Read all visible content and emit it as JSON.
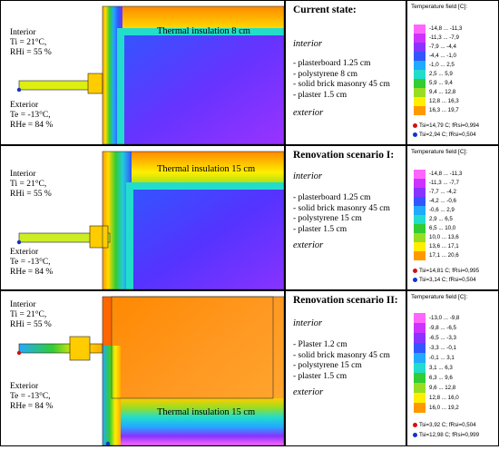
{
  "panels": [
    {
      "interior_lines": [
        "Interior",
        "Ti = 21°C,",
        "RHi = 55 %"
      ],
      "exterior_lines": [
        "Exterior",
        "Te = -13°C,",
        "RHe = 84 %"
      ],
      "insulation_label": "Thermal insulation 8 cm",
      "title": "Current state:",
      "interior_word": "interior",
      "layers": [
        "plasterboard 1.25 cm",
        "polystyrene 8 cm",
        "solid brick masonry 45 cm",
        "plaster 1.5 cm"
      ],
      "exterior_word": "exterior",
      "legend_title": "Temperature field [C]:",
      "legend_ranges": [
        "-14,8 ... -11,3",
        "-11,3 ... -7,9",
        "-7,9 ... -4,4",
        "-4,4 ... -1,0",
        "-1,0 ... 2,5",
        "2,5 ... 5,9",
        "5,9 ... 9,4",
        "9,4 ... 12,8",
        "12,8 ... 16,3",
        "16,3 ... 19,7"
      ],
      "tsi": [
        "Tsi=14,79 C; fRsi=0,994",
        "Tsi=2,94 C; fRsi=0,504"
      ]
    },
    {
      "interior_lines": [
        "Interior",
        "Ti = 21°C,",
        "RHi = 55 %"
      ],
      "exterior_lines": [
        "Exterior",
        "Te = -13°C,",
        "RHe = 84 %"
      ],
      "insulation_label": "Thermal insulation 15 cm",
      "title": "Renovation scenario I:",
      "interior_word": "interior",
      "layers": [
        "plasterboard 1.25 cm",
        "solid brick masonry 45 cm",
        "polystyrene 15 cm",
        "plaster 1.5 cm"
      ],
      "exterior_word": "exterior",
      "legend_title": "Temperature field [C]:",
      "legend_ranges": [
        "-14,8 ... -11,3",
        "-11,3 ... -7,7",
        "-7,7 ... -4,2",
        "-4,2 ... -0,6",
        "-0,6 ... 2,9",
        "2,9 ... 6,5",
        "6,5 ... 10,0",
        "10,0 ... 13,6",
        "13,6 ... 17,1",
        "17,1 ... 20,6"
      ],
      "tsi": [
        "Tsi=14,81 C; fRsi=0,995",
        "Tsi=3,14 C; fRsi=0,504"
      ]
    },
    {
      "interior_lines": [
        "Interior",
        "Ti = 21°C,",
        "RHi = 55 %"
      ],
      "exterior_lines": [
        "Exterior",
        "Te = -13°C,",
        "RHe = 84 %"
      ],
      "insulation_label": "Thermal insulation 15 cm",
      "title": "Renovation scenario II:",
      "interior_word": "interior",
      "layers": [
        "Plaster  1.2 cm",
        "solid brick masonry 45 cm",
        "polystyrene 15 cm",
        "plaster 1.5 cm"
      ],
      "exterior_word": "exterior",
      "legend_title": "Temperature field [C]:",
      "legend_ranges": [
        "-13,0 ... -9,8",
        "-9,8 ... -6,5",
        "-6,5 ... -3,3",
        "-3,3 ... -0,1",
        "-0,1 ... 3,1",
        "3,1 ... 6,3",
        "6,3 ... 9,6",
        "9,6 ... 12,8",
        "12,8 ... 16,0",
        "16,0 ... 19,2"
      ],
      "tsi": [
        "Tsi=3,92 C; fRsi=0,504",
        "Tsi=12,98 C; fRsi=0,999"
      ]
    }
  ],
  "colors": {
    "scale": [
      "#ff66ff",
      "#cc33ff",
      "#8833ff",
      "#3355ff",
      "#22aaff",
      "#22ddcc",
      "#33cc33",
      "#99dd22",
      "#ffee00",
      "#ff9900"
    ],
    "marker_red": "#d11111",
    "marker_blue": "#1133cc"
  }
}
